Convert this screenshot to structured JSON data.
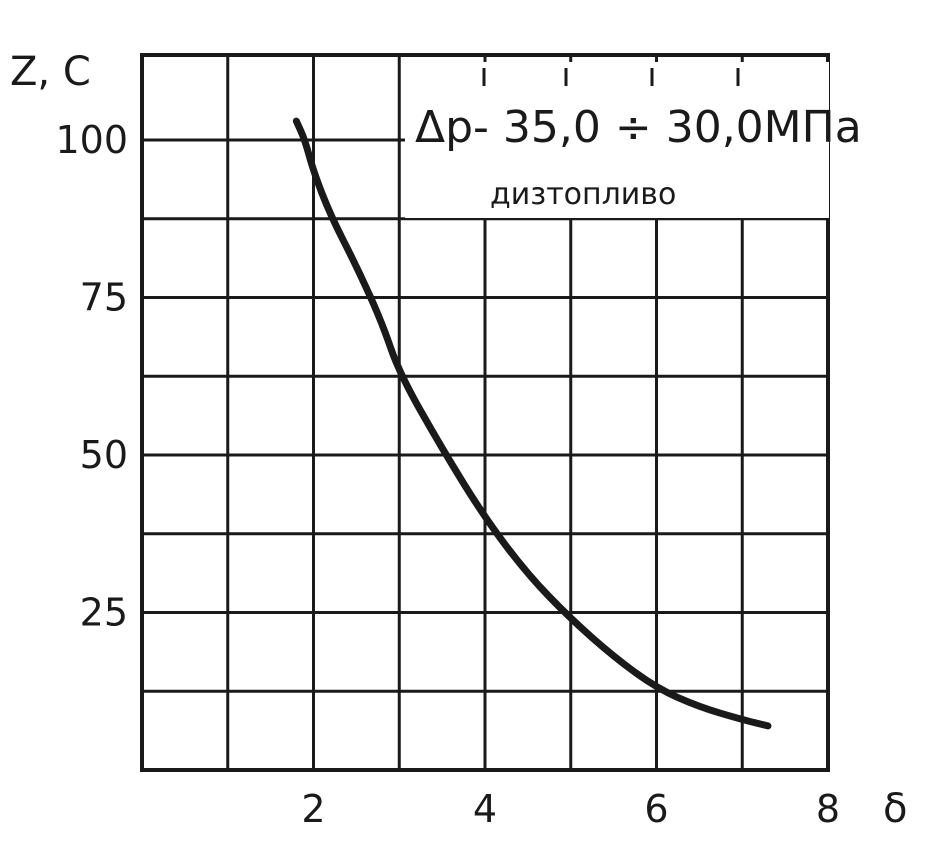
{
  "chart_data": {
    "type": "line",
    "title": "",
    "xlabel": "δ",
    "ylabel": "Z, C",
    "xlim": [
      0,
      8
    ],
    "ylim": [
      0,
      100
    ],
    "x_ticks": [
      2,
      4,
      6,
      8
    ],
    "x_tick_labels": [
      "2",
      "4",
      "6",
      "8"
    ],
    "y_ticks": [
      25,
      50,
      75,
      100
    ],
    "y_tick_labels": [
      "25",
      "50",
      "75",
      "100"
    ],
    "grid": true,
    "annotations": [
      {
        "text": "Δp- 35,0 ÷ 30,0МПа",
        "position": "top-right"
      },
      {
        "text": "дизтопливо",
        "position": "top-right"
      }
    ],
    "series": [
      {
        "x": [
          1.8,
          1.9,
          2.0,
          2.2,
          2.5,
          2.8,
          3.0,
          3.5,
          4.0,
          4.5,
          5.0,
          5.5,
          6.0,
          6.5,
          7.0,
          7.3
        ],
        "y": [
          103,
          100,
          95,
          88,
          80,
          71,
          63,
          51,
          40,
          31,
          24,
          18,
          13,
          10,
          8,
          7
        ]
      }
    ]
  }
}
